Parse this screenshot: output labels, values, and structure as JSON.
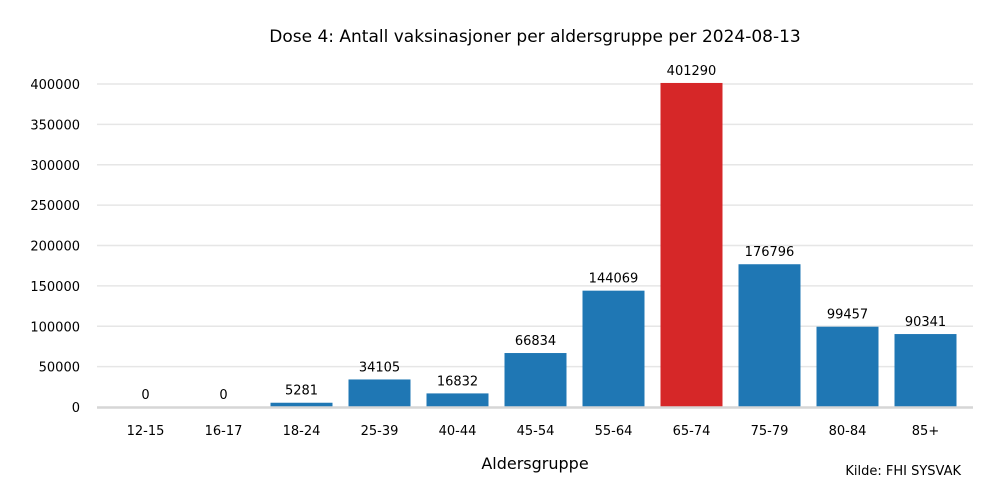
{
  "chart_data": {
    "type": "bar",
    "title": "Dose 4: Antall vaksinasjoner per aldersgruppe per 2024-08-13",
    "xlabel": "Aldersgruppe",
    "ylabel": "",
    "source": "Kilde: FHI SYSVAK",
    "categories": [
      "12-15",
      "16-17",
      "18-24",
      "25-39",
      "40-44",
      "45-54",
      "55-64",
      "65-74",
      "75-79",
      "80-84",
      "85+"
    ],
    "values": [
      0,
      0,
      5281,
      34105,
      16832,
      66834,
      144069,
      401290,
      176796,
      99457,
      90341
    ],
    "ylim": [
      0,
      400000
    ],
    "yticks": [
      0,
      50000,
      100000,
      150000,
      200000,
      250000,
      300000,
      350000,
      400000
    ],
    "grid": true,
    "bar_color": "#1f77b4",
    "highlight_color": "#d62728",
    "highlight_category": "65-74",
    "legend": "none"
  }
}
